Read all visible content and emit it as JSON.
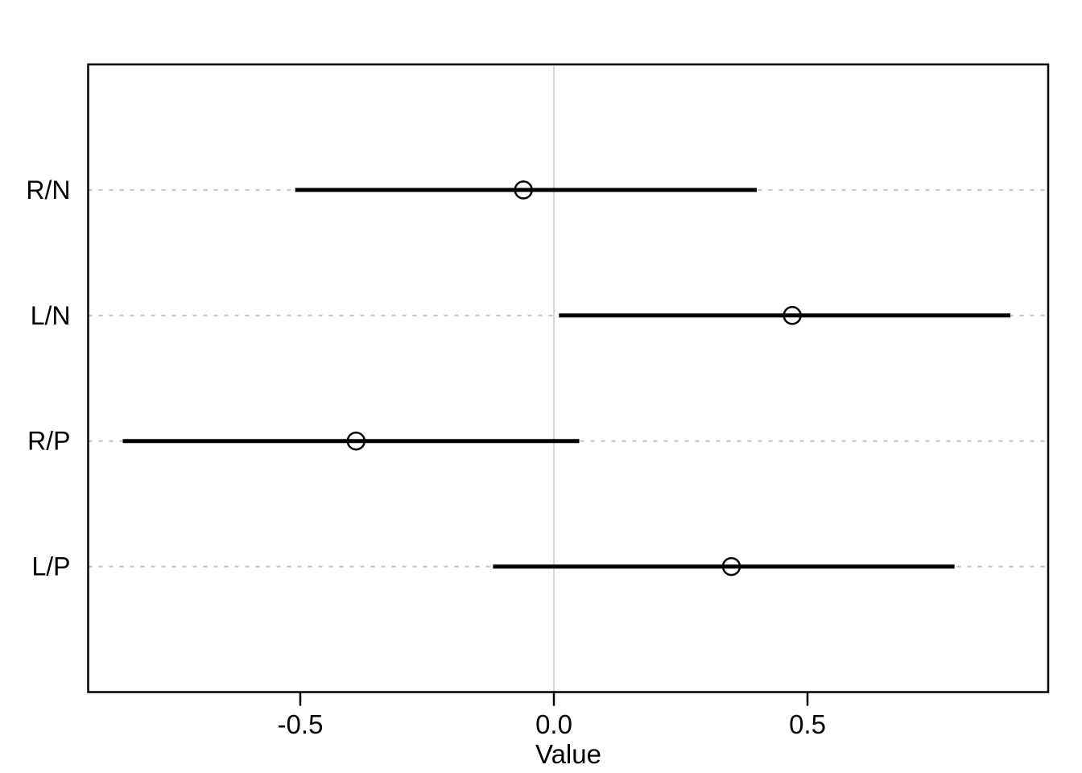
{
  "chart_data": {
    "type": "scatter",
    "subtype": "dotplot-with-horizontal-intervals",
    "title": "",
    "xlabel": "Value",
    "ylabel": "",
    "categories_top_to_bottom": [
      "R/N",
      "L/N",
      "R/P",
      "L/P"
    ],
    "series": [
      {
        "label": "R/N",
        "value": -0.06,
        "low": -0.51,
        "high": 0.4
      },
      {
        "label": "L/N",
        "value": 0.47,
        "low": 0.01,
        "high": 0.9
      },
      {
        "label": "R/P",
        "value": -0.39,
        "low": -0.85,
        "high": 0.05
      },
      {
        "label": "L/P",
        "value": 0.35,
        "low": -0.12,
        "high": 0.79
      }
    ],
    "x_ticks": [
      -0.5,
      0.0,
      0.5
    ],
    "x_tick_labels": [
      "-0.5",
      "0.0",
      "0.5"
    ],
    "xlim": [
      -0.918,
      0.975
    ],
    "legend": "none",
    "grid": {
      "vertical_zero_line": true,
      "horizontal_dashed_row_lines": true
    },
    "colors": {
      "background": "#ffffff",
      "border": "#000000",
      "interval_line": "#000000",
      "point_stroke": "#000000",
      "zero_gridline": "#d6d6d6",
      "row_dashed_line": "#c2c2c2",
      "text": "#000000"
    }
  }
}
